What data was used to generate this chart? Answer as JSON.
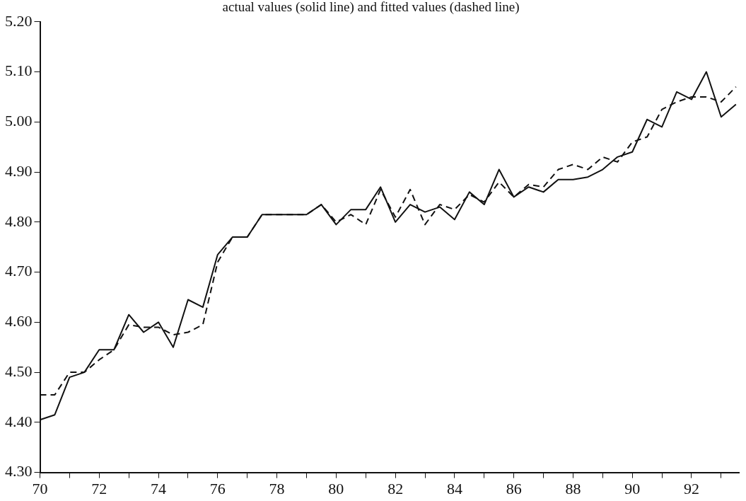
{
  "chart_data": {
    "type": "line",
    "title": "actual values (solid line) and fitted values (dashed line)",
    "x": [
      70,
      70.5,
      71,
      71.5,
      72,
      72.5,
      73,
      73.5,
      74,
      74.5,
      75,
      75.5,
      76,
      76.5,
      77,
      77.5,
      78,
      78.5,
      79,
      79.5,
      80,
      80.5,
      81,
      81.5,
      82,
      82.5,
      83,
      83.5,
      84,
      84.5,
      85,
      85.5,
      86,
      86.5,
      87,
      87.5,
      88,
      88.5,
      89,
      89.5,
      90,
      90.5,
      91,
      91.5,
      92,
      92.5,
      93,
      93.5
    ],
    "series": [
      {
        "color": "#111111",
        "line_style": "solid",
        "values": [
          4.405,
          4.415,
          4.49,
          4.5,
          4.545,
          4.545,
          4.615,
          4.58,
          4.6,
          4.55,
          4.645,
          4.63,
          4.735,
          4.77,
          4.77,
          4.815,
          4.815,
          4.815,
          4.815,
          4.835,
          4.795,
          4.825,
          4.825,
          4.87,
          4.8,
          4.835,
          4.82,
          4.83,
          4.805,
          4.86,
          4.835,
          4.905,
          4.85,
          4.87,
          4.86,
          4.885,
          4.885,
          4.89,
          4.905,
          4.93,
          4.94,
          5.005,
          4.99,
          5.06,
          5.045,
          5.1,
          5.01,
          5.035
        ]
      },
      {
        "color": "#111111",
        "line_style": "dashed",
        "values": [
          4.455,
          4.455,
          4.5,
          4.5,
          4.525,
          4.545,
          4.595,
          4.59,
          4.59,
          4.575,
          4.58,
          4.595,
          4.72,
          4.77,
          4.77,
          4.815,
          4.815,
          4.815,
          4.815,
          4.835,
          4.8,
          4.815,
          4.795,
          4.865,
          4.81,
          4.865,
          4.795,
          4.835,
          4.825,
          4.855,
          4.84,
          4.88,
          4.85,
          4.875,
          4.87,
          4.905,
          4.915,
          4.905,
          4.93,
          4.92,
          4.96,
          4.97,
          5.025,
          5.04,
          5.05,
          5.05,
          5.04,
          5.07
        ]
      }
    ],
    "xlim": [
      70,
      93.6
    ],
    "xticks": [
      70,
      {
        "value": 71,
        "label": null
      },
      72,
      {
        "value": 73,
        "label": null
      },
      74,
      {
        "value": 75,
        "label": null
      },
      76,
      {
        "value": 77,
        "label": null
      },
      78,
      {
        "value": 79,
        "label": null
      },
      80,
      {
        "value": 81,
        "label": null
      },
      82,
      {
        "value": 83,
        "label": null
      },
      84,
      {
        "value": 85,
        "label": null
      },
      86,
      {
        "value": 87,
        "label": null
      },
      88,
      {
        "value": 89,
        "label": null
      },
      90,
      {
        "value": 91,
        "label": null
      },
      92,
      {
        "value": 93,
        "label": null
      }
    ],
    "ylim": [
      4.3,
      5.2
    ],
    "yticks": [
      {
        "value": 4.3,
        "label": "4.30"
      },
      {
        "value": 4.4,
        "label": "4.40"
      },
      {
        "value": 4.5,
        "label": "4.50"
      },
      {
        "value": 4.6,
        "label": "4.60"
      },
      {
        "value": 4.7,
        "label": "4.70"
      },
      {
        "value": 4.8,
        "label": "4.80"
      },
      {
        "value": 4.9,
        "label": "4.90"
      },
      {
        "value": 5.0,
        "label": "5.00"
      },
      {
        "value": 5.1,
        "label": "5.10"
      },
      {
        "value": 5.2,
        "label": "5.20"
      }
    ],
    "grid": false,
    "legend": false,
    "marker": "none"
  }
}
